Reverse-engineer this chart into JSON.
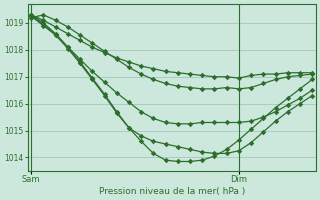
{
  "xlabel": "Pression niveau de la mer( hPa )",
  "background_color": "#cce8dc",
  "grid_color": "#aaccbb",
  "line_color": "#2d6e2d",
  "marker_color": "#2d6e2d",
  "ylim": [
    1013.5,
    1019.7
  ],
  "xlim": [
    0,
    23
  ],
  "dim_x": 17,
  "sam_label": "Sam",
  "dim_label": "Dim",
  "yticks": [
    1014,
    1015,
    1016,
    1017,
    1018,
    1019
  ],
  "series": [
    [
      1019.3,
      1019.1,
      1018.85,
      1018.6,
      1018.35,
      1018.1,
      1017.9,
      1017.7,
      1017.55,
      1017.4,
      1017.3,
      1017.2,
      1017.15,
      1017.1,
      1017.05,
      1017.0,
      1017.0,
      1016.95,
      1017.05,
      1017.1,
      1017.1,
      1017.15,
      1017.15,
      1017.15
    ],
    [
      1019.2,
      1019.3,
      1019.1,
      1018.85,
      1018.55,
      1018.25,
      1017.95,
      1017.65,
      1017.35,
      1017.1,
      1016.9,
      1016.75,
      1016.65,
      1016.6,
      1016.55,
      1016.55,
      1016.6,
      1016.55,
      1016.6,
      1016.75,
      1016.9,
      1017.0,
      1017.05,
      1017.1
    ],
    [
      1019.25,
      1018.9,
      1018.55,
      1018.1,
      1017.65,
      1017.2,
      1016.8,
      1016.4,
      1016.05,
      1015.7,
      1015.45,
      1015.3,
      1015.25,
      1015.25,
      1015.3,
      1015.3,
      1015.3,
      1015.3,
      1015.35,
      1015.5,
      1015.7,
      1015.95,
      1016.2,
      1016.5
    ],
    [
      1019.3,
      1018.95,
      1018.55,
      1018.05,
      1017.5,
      1016.9,
      1016.3,
      1015.65,
      1015.1,
      1014.8,
      1014.6,
      1014.5,
      1014.4,
      1014.3,
      1014.2,
      1014.15,
      1014.15,
      1014.25,
      1014.55,
      1014.95,
      1015.35,
      1015.7,
      1016.0,
      1016.3
    ],
    [
      1019.3,
      1019.0,
      1018.6,
      1018.1,
      1017.55,
      1016.95,
      1016.35,
      1015.7,
      1015.1,
      1014.6,
      1014.15,
      1013.9,
      1013.85,
      1013.85,
      1013.9,
      1014.05,
      1014.3,
      1014.65,
      1015.05,
      1015.45,
      1015.85,
      1016.2,
      1016.55,
      1016.9
    ]
  ],
  "marker_step": 1,
  "linewidth": 0.9,
  "markersize": 2.8
}
